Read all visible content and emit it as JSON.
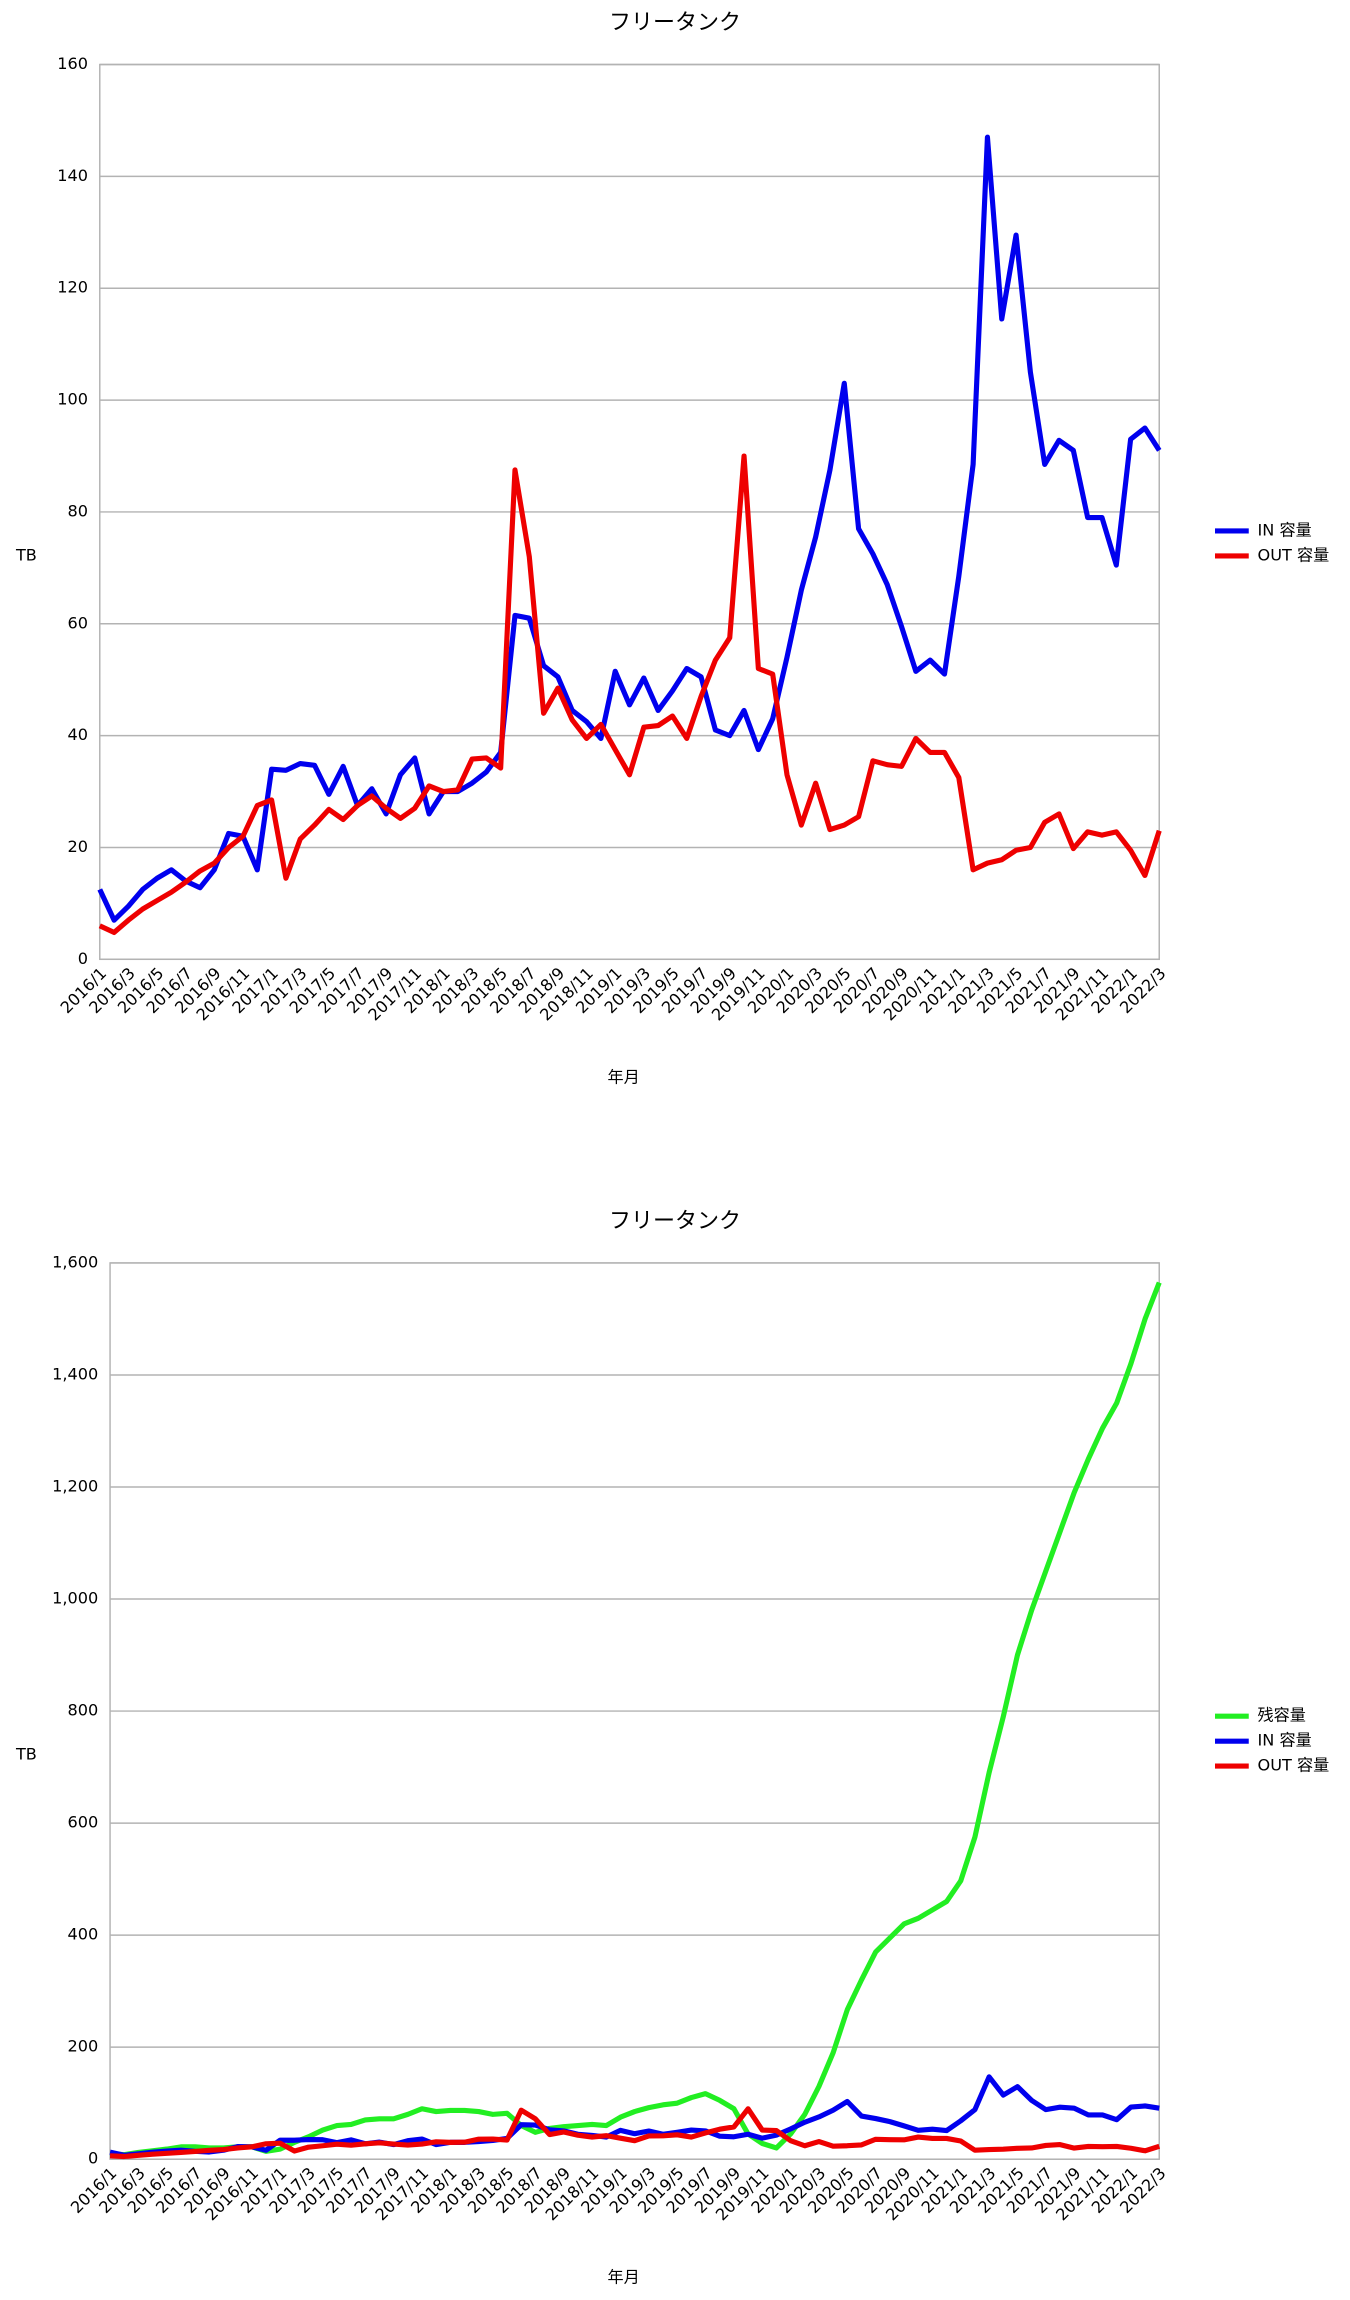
{
  "chart_data": [
    {
      "type": "line",
      "title": "フリータンク",
      "xlabel": "年月",
      "ylabel": "TB",
      "categories": [
        "2016/1",
        null,
        "2016/3",
        null,
        "2016/5",
        null,
        "2016/7",
        null,
        "2016/9",
        null,
        "2016/11",
        null,
        "2017/1",
        null,
        "2017/3",
        null,
        "2017/5",
        null,
        "2017/7",
        null,
        "2017/9",
        null,
        "2017/11",
        null,
        "2018/1",
        null,
        "2018/3",
        null,
        "2018/5",
        null,
        "2018/7",
        null,
        "2018/9",
        null,
        "2018/11",
        null,
        "2019/1",
        null,
        "2019/3",
        null,
        "2019/5",
        null,
        "2019/7",
        null,
        "2019/9",
        null,
        "2019/11",
        null,
        "2020/1",
        null,
        "2020/3",
        null,
        "2020/5",
        null,
        "2020/7",
        null,
        "2020/9",
        null,
        "2020/11",
        null,
        "2021/1",
        null,
        "2021/3",
        null,
        "2021/5",
        null,
        "2021/7",
        null,
        "2021/9",
        null,
        "2021/11",
        null,
        "2022/1",
        null,
        "2022/3"
      ],
      "series": [
        {
          "name": "IN 容量",
          "color": "#0000ee",
          "values": [
            12.5,
            7,
            9.5,
            12.5,
            14.5,
            16,
            14,
            12.8,
            16,
            22.5,
            22,
            16,
            34,
            33.8,
            35,
            34.7,
            29.5,
            34.5,
            27.5,
            30.5,
            26,
            33,
            36,
            26,
            30,
            30,
            31.5,
            33.5,
            37,
            61.5,
            61,
            52.5,
            50.5,
            44.5,
            42.5,
            39.5,
            51.5,
            45.5,
            50.3,
            44.5,
            48,
            52,
            50.5,
            41,
            40,
            44.5,
            37.5,
            43,
            54,
            66,
            75.5,
            87.5,
            103,
            77,
            72.5,
            67,
            59.5,
            51.5,
            53.5,
            51,
            68.5,
            88.5,
            147,
            114.5,
            129.5,
            105,
            88.5,
            92.8,
            91,
            79,
            79,
            70.5,
            93,
            95,
            91
          ]
        },
        {
          "name": "OUT 容量",
          "color": "#ee0000",
          "values": [
            6,
            4.8,
            7,
            9,
            10.5,
            12,
            13.8,
            15.8,
            17.2,
            20,
            22,
            27.5,
            28.5,
            14.5,
            21.5,
            24,
            26.8,
            25,
            27.5,
            29.2,
            27,
            25.2,
            27,
            31,
            30,
            30.3,
            35.8,
            36,
            34.2,
            87.5,
            72,
            44,
            48.5,
            42.8,
            39.5,
            42,
            37.5,
            33,
            41.5,
            41.8,
            43.5,
            39.5,
            47,
            53.5,
            57.5,
            90,
            52,
            51,
            33,
            24,
            31.5,
            23.2,
            24,
            25.5,
            35.5,
            34.8,
            34.5,
            39.5,
            37,
            37,
            32.5,
            16,
            17.2,
            17.8,
            19.5,
            20,
            24.5,
            26,
            19.8,
            22.8,
            22.2,
            22.8,
            19.5,
            15,
            23
          ]
        }
      ],
      "ylim": [
        0,
        160
      ],
      "yticks": [
        0,
        20,
        40,
        60,
        80,
        100,
        120,
        140,
        160
      ],
      "grid": true,
      "legend": "right"
    },
    {
      "type": "line",
      "title": "フリータンク",
      "xlabel": "年月",
      "ylabel": "TB",
      "categories": [
        "2016/1",
        null,
        "2016/3",
        null,
        "2016/5",
        null,
        "2016/7",
        null,
        "2016/9",
        null,
        "2016/11",
        null,
        "2017/1",
        null,
        "2017/3",
        null,
        "2017/5",
        null,
        "2017/7",
        null,
        "2017/9",
        null,
        "2017/11",
        null,
        "2018/1",
        null,
        "2018/3",
        null,
        "2018/5",
        null,
        "2018/7",
        null,
        "2018/9",
        null,
        "2018/11",
        null,
        "2019/1",
        null,
        "2019/3",
        null,
        "2019/5",
        null,
        "2019/7",
        null,
        "2019/9",
        null,
        "2019/11",
        null,
        "2020/1",
        null,
        "2020/3",
        null,
        "2020/5",
        null,
        "2020/7",
        null,
        "2020/9",
        null,
        "2020/11",
        null,
        "2021/1",
        null,
        "2021/3",
        null,
        "2021/5",
        null,
        "2021/7",
        null,
        "2021/9",
        null,
        "2021/11",
        null,
        "2022/1",
        null,
        "2022/3"
      ],
      "series": [
        {
          "name": "残容量",
          "color": "#22ee22",
          "values": [
            10,
            8,
            12,
            15,
            18,
            22,
            22,
            20,
            20,
            22,
            22,
            14,
            18,
            30,
            40,
            52,
            60,
            62,
            70,
            72,
            72,
            80,
            90,
            85,
            87,
            87,
            85,
            80,
            82,
            60,
            48,
            55,
            58,
            60,
            62,
            60,
            75,
            85,
            92,
            97,
            100,
            110,
            117,
            105,
            90,
            45,
            28,
            20,
            45,
            80,
            130,
            190,
            267,
            320,
            370,
            395,
            420,
            430,
            445,
            460,
            497,
            575,
            690,
            790,
            900,
            980,
            1050,
            1120,
            1190,
            1250,
            1305,
            1350,
            1420,
            1500,
            1565
          ]
        },
        {
          "name": "IN 容量",
          "color": "#0000ee",
          "values": [
            12.5,
            7,
            9.5,
            12.5,
            14.5,
            16,
            14,
            12.8,
            16,
            22.5,
            22,
            16,
            34,
            33.8,
            35,
            34.7,
            29.5,
            34.5,
            27.5,
            30.5,
            26,
            33,
            36,
            26,
            30,
            30,
            31.5,
            33.5,
            37,
            61.5,
            61,
            52.5,
            50.5,
            44.5,
            42.5,
            39.5,
            51.5,
            45.5,
            50.3,
            44.5,
            48,
            52,
            50.5,
            41,
            40,
            44.5,
            37.5,
            43,
            54,
            66,
            75.5,
            87.5,
            103,
            77,
            72.5,
            67,
            59.5,
            51.5,
            53.5,
            51,
            68.5,
            88.5,
            147,
            114.5,
            129.5,
            105,
            88.5,
            92.8,
            91,
            79,
            79,
            70.5,
            93,
            95,
            91
          ]
        },
        {
          "name": "OUT 容量",
          "color": "#ee0000",
          "values": [
            6,
            4.8,
            7,
            9,
            10.5,
            12,
            13.8,
            15.8,
            17.2,
            20,
            22,
            27.5,
            28.5,
            14.5,
            21.5,
            24,
            26.8,
            25,
            27.5,
            29.2,
            27,
            25.2,
            27,
            31,
            30,
            30.3,
            35.8,
            36,
            34.2,
            87.5,
            72,
            44,
            48.5,
            42.8,
            39.5,
            42,
            37.5,
            33,
            41.5,
            41.8,
            43.5,
            39.5,
            47,
            53.5,
            57.5,
            90,
            52,
            51,
            33,
            24,
            31.5,
            23.2,
            24,
            25.5,
            35.5,
            34.8,
            34.5,
            39.5,
            37,
            37,
            32.5,
            16,
            17.2,
            17.8,
            19.5,
            20,
            24.5,
            26,
            19.8,
            22.8,
            22.2,
            22.8,
            19.5,
            15,
            23
          ]
        }
      ],
      "ylim": [
        0,
        1600
      ],
      "yticks": [
        0,
        200,
        400,
        600,
        800,
        {
          "value": 1000,
          "label": "1,000"
        },
        {
          "value": 1200,
          "label": "1,200"
        },
        {
          "value": 1400,
          "label": "1,400"
        },
        {
          "value": 1600,
          "label": "1,600"
        }
      ],
      "grid": true,
      "legend": "right"
    }
  ]
}
